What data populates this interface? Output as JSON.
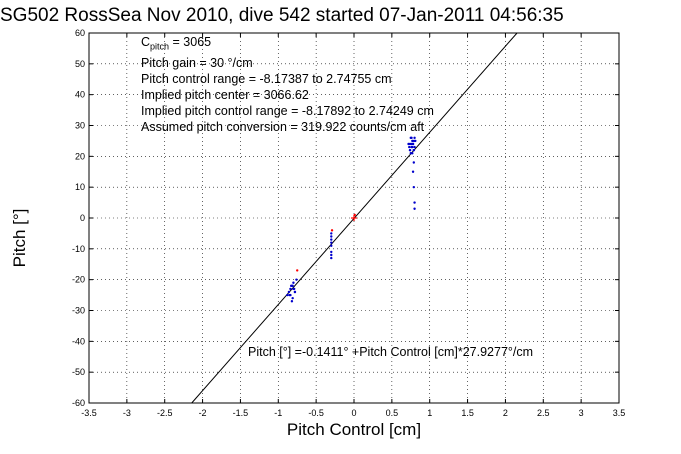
{
  "chart_data": {
    "type": "scatter",
    "title": "SG502 RossSea Nov 2010, dive 542 started 07-Jan-2011 04:56:35",
    "xlabel": "Pitch Control [cm]",
    "ylabel": "Pitch [°]",
    "xlim": [
      -3.5,
      3.5
    ],
    "ylim": [
      -60,
      60
    ],
    "xticks": [
      "-3.5",
      "-3",
      "-2.5",
      "-2",
      "-1.5",
      "-1",
      "-0.5",
      "0",
      "0.5",
      "1",
      "1.5",
      "2",
      "2.5",
      "3",
      "3.5"
    ],
    "yticks": [
      "60",
      "50",
      "40",
      "30",
      "20",
      "10",
      "0",
      "-10",
      "-20",
      "-30",
      "-40",
      "-50",
      "-60"
    ],
    "grid": true,
    "annotations": {
      "c_pitch_main": "C",
      "c_pitch_sub": "pitch",
      "c_pitch_value": " = 3065",
      "line2": "Pitch gain = 30 °/cm",
      "line3": "Pitch control range = -8.17387 to 2.74755 cm",
      "line4": "Implied pitch center = 3066.62",
      "line5": "Implied pitch control range = -8.17892 to 2.74249 cm",
      "line6": "Assumed pitch conversion = 319.922 counts/cm aft"
    },
    "fit_equation": "Pitch [°] =-0.1411° +Pitch Control [cm]*27.9277°/cm",
    "fit_line": {
      "intercept": -0.1411,
      "slope": 27.9277,
      "color": "#000000"
    },
    "center_point": {
      "x": 0.0,
      "y": 0.0,
      "color": "#ff0000"
    },
    "series": [
      {
        "color": "#0000cc",
        "x": [
          -0.82,
          -0.8,
          -0.78,
          -0.84,
          -0.86,
          -0.81,
          -0.79,
          -0.83,
          -0.85,
          -0.8,
          -0.78,
          -0.82,
          -0.84,
          -0.76,
          -0.88,
          -0.81,
          -0.3,
          -0.3,
          -0.3,
          -0.3,
          -0.3,
          -0.3,
          -0.3,
          -0.3,
          0.74,
          0.76,
          0.78,
          0.8,
          0.75,
          0.77,
          0.79,
          0.73,
          0.76,
          0.78,
          0.8,
          0.74,
          0.77,
          0.79,
          0.81,
          0.75,
          0.78,
          0.76,
          0.8,
          0.74,
          0.72,
          0.77,
          0.78,
          0.79,
          0.8,
          0.8,
          0.79
        ],
        "y": [
          -22,
          -23,
          -24,
          -25,
          -24,
          -26,
          -23,
          -22,
          -25,
          -21,
          -24,
          -27,
          -23,
          -20,
          -25,
          -22,
          -5,
          -7,
          -9,
          -11,
          -13,
          -8,
          -6,
          -12,
          22,
          23,
          24,
          25,
          26,
          21,
          22,
          23,
          24,
          25,
          26,
          24,
          23,
          22,
          25,
          21,
          24,
          26,
          23,
          22,
          24,
          25,
          15,
          10,
          5,
          3,
          18
        ]
      },
      {
        "color": "#ff0000",
        "x": [
          -0.75,
          0.01,
          -0.29
        ],
        "y": [
          -17,
          1,
          -4
        ]
      }
    ]
  }
}
